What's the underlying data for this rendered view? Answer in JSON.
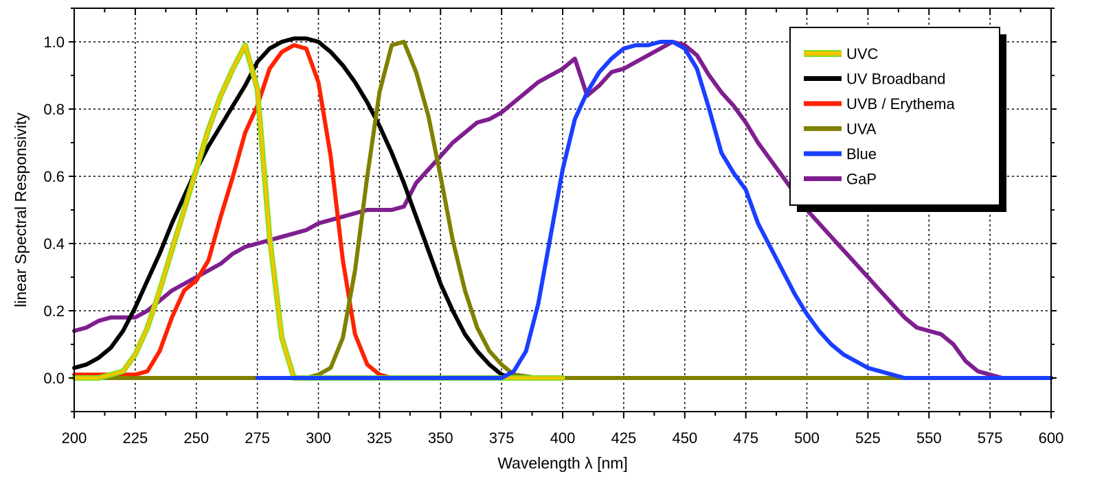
{
  "chart_data": {
    "type": "line",
    "title": "",
    "xlabel": "Wavelength λ [nm]",
    "ylabel": "linear Spectral Responsivity",
    "xlim": [
      200,
      600
    ],
    "ylim": [
      -0.1,
      1.1
    ],
    "xticks": [
      200,
      225,
      250,
      275,
      300,
      325,
      350,
      375,
      400,
      425,
      450,
      475,
      500,
      525,
      550,
      575,
      600
    ],
    "yticks": [
      0.0,
      0.2,
      0.4,
      0.6,
      0.8,
      1.0
    ],
    "ytick_labels": [
      "0.0",
      "0.2",
      "0.4",
      "0.6",
      "0.8",
      "1.0"
    ],
    "grid": true,
    "legend_position": "top-right",
    "series": [
      {
        "name": "UVC",
        "color": "#f5c400",
        "outline": "#7ee01e",
        "x": [
          200,
          205,
          210,
          215,
          220,
          225,
          230,
          235,
          240,
          245,
          250,
          255,
          260,
          265,
          270,
          275,
          280,
          285,
          290,
          300,
          400
        ],
        "y": [
          0.0,
          0.0,
          0.0,
          0.01,
          0.02,
          0.07,
          0.15,
          0.26,
          0.38,
          0.5,
          0.62,
          0.74,
          0.84,
          0.92,
          0.99,
          0.86,
          0.42,
          0.12,
          0.0,
          0.0,
          0.0
        ]
      },
      {
        "name": "UV Broadband",
        "color": "#000000",
        "x": [
          200,
          205,
          210,
          215,
          220,
          225,
          230,
          235,
          240,
          245,
          250,
          255,
          260,
          265,
          270,
          275,
          280,
          285,
          290,
          295,
          300,
          305,
          310,
          315,
          320,
          325,
          330,
          335,
          340,
          345,
          350,
          355,
          360,
          365,
          370,
          375,
          380,
          390,
          400,
          600
        ],
        "y": [
          0.03,
          0.04,
          0.06,
          0.09,
          0.14,
          0.21,
          0.29,
          0.37,
          0.46,
          0.54,
          0.62,
          0.69,
          0.75,
          0.81,
          0.87,
          0.94,
          0.98,
          1.0,
          1.01,
          1.01,
          1.0,
          0.97,
          0.93,
          0.88,
          0.82,
          0.75,
          0.67,
          0.58,
          0.48,
          0.38,
          0.28,
          0.2,
          0.13,
          0.08,
          0.04,
          0.01,
          0.0,
          0.0,
          0.0,
          0.0
        ]
      },
      {
        "name": "UVB / Erythema",
        "color": "#ff2200",
        "x": [
          200,
          205,
          210,
          215,
          220,
          225,
          230,
          235,
          240,
          245,
          250,
          255,
          260,
          265,
          270,
          275,
          280,
          285,
          290,
          295,
          300,
          305,
          310,
          315,
          320,
          325,
          330,
          400
        ],
        "y": [
          0.01,
          0.01,
          0.01,
          0.01,
          0.01,
          0.01,
          0.02,
          0.08,
          0.18,
          0.26,
          0.29,
          0.35,
          0.48,
          0.6,
          0.73,
          0.81,
          0.92,
          0.97,
          0.99,
          0.98,
          0.88,
          0.66,
          0.35,
          0.13,
          0.04,
          0.01,
          0.0,
          0.0
        ]
      },
      {
        "name": "UVA",
        "color": "#808000",
        "x": [
          200,
          275,
          295,
          300,
          305,
          310,
          315,
          320,
          325,
          330,
          335,
          340,
          345,
          350,
          355,
          360,
          365,
          370,
          375,
          380,
          390,
          400,
          600
        ],
        "y": [
          0.0,
          0.0,
          0.0,
          0.01,
          0.03,
          0.12,
          0.32,
          0.6,
          0.85,
          0.99,
          1.0,
          0.91,
          0.78,
          0.6,
          0.41,
          0.26,
          0.15,
          0.08,
          0.04,
          0.01,
          0.0,
          0.0,
          0.0
        ]
      },
      {
        "name": "Blue",
        "color": "#1a3fff",
        "x": [
          275,
          370,
          375,
          380,
          385,
          390,
          395,
          400,
          405,
          410,
          415,
          420,
          425,
          430,
          435,
          440,
          445,
          450,
          455,
          460,
          465,
          470,
          475,
          480,
          485,
          490,
          495,
          500,
          505,
          510,
          515,
          520,
          525,
          530,
          535,
          540,
          545,
          550,
          600
        ],
        "y": [
          0.0,
          0.0,
          0.0,
          0.02,
          0.08,
          0.22,
          0.42,
          0.62,
          0.77,
          0.85,
          0.91,
          0.95,
          0.98,
          0.99,
          0.99,
          1.0,
          1.0,
          0.98,
          0.92,
          0.8,
          0.67,
          0.61,
          0.56,
          0.46,
          0.39,
          0.32,
          0.25,
          0.19,
          0.14,
          0.1,
          0.07,
          0.05,
          0.03,
          0.02,
          0.01,
          0.0,
          0.0,
          0.0,
          0.0
        ]
      },
      {
        "name": "GaP",
        "color": "#7f1f8f",
        "x": [
          200,
          205,
          210,
          215,
          220,
          225,
          230,
          235,
          240,
          245,
          250,
          255,
          260,
          265,
          270,
          275,
          280,
          285,
          290,
          295,
          300,
          305,
          310,
          315,
          320,
          325,
          330,
          335,
          340,
          345,
          350,
          355,
          360,
          365,
          370,
          375,
          380,
          385,
          390,
          395,
          400,
          405,
          410,
          415,
          420,
          425,
          430,
          435,
          440,
          445,
          450,
          455,
          460,
          465,
          470,
          475,
          480,
          485,
          490,
          495,
          500,
          505,
          510,
          515,
          520,
          525,
          530,
          535,
          540,
          545,
          550,
          555,
          560,
          565,
          570,
          575,
          580,
          585,
          590,
          600
        ],
        "y": [
          0.14,
          0.15,
          0.17,
          0.18,
          0.18,
          0.18,
          0.2,
          0.23,
          0.26,
          0.28,
          0.3,
          0.32,
          0.34,
          0.37,
          0.39,
          0.4,
          0.41,
          0.42,
          0.43,
          0.44,
          0.46,
          0.47,
          0.48,
          0.49,
          0.5,
          0.5,
          0.5,
          0.51,
          0.58,
          0.62,
          0.66,
          0.7,
          0.73,
          0.76,
          0.77,
          0.79,
          0.82,
          0.85,
          0.88,
          0.9,
          0.92,
          0.95,
          0.84,
          0.87,
          0.91,
          0.92,
          0.94,
          0.96,
          0.98,
          1.0,
          0.99,
          0.96,
          0.9,
          0.85,
          0.81,
          0.76,
          0.7,
          0.65,
          0.6,
          0.55,
          0.5,
          0.46,
          0.42,
          0.38,
          0.34,
          0.3,
          0.26,
          0.22,
          0.18,
          0.15,
          0.14,
          0.13,
          0.1,
          0.05,
          0.02,
          0.01,
          0.0,
          0.0,
          0.0,
          0.0
        ]
      }
    ]
  }
}
